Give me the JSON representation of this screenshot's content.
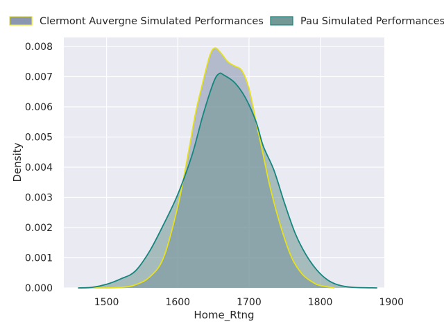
{
  "chart_data": {
    "type": "area",
    "title": "",
    "xlabel": "Home_Rtng",
    "ylabel": "Density",
    "xlim": [
      1440,
      1890
    ],
    "ylim": [
      0,
      0.0083
    ],
    "x_ticks": [
      1500,
      1600,
      1700,
      1800,
      1900
    ],
    "x_tick_labels": [
      "1500",
      "1600",
      "1700",
      "1800",
      "1900"
    ],
    "y_ticks": [
      0,
      0.001,
      0.002,
      0.003,
      0.004,
      0.005,
      0.006,
      0.007,
      0.008
    ],
    "y_tick_labels": [
      "0.000",
      "0.001",
      "0.002",
      "0.003",
      "0.004",
      "0.005",
      "0.006",
      "0.007",
      "0.008"
    ],
    "grid": true,
    "legend_placement": "top, above plot",
    "colors": {
      "background": "#eaeaf2",
      "grid": "#ffffff",
      "series_1_fill": "#8591ad",
      "series_1_line": "#e6e11a",
      "series_2_fill": "#6b9390",
      "series_2_line": "#16857e"
    },
    "series": [
      {
        "name": "Clermont Auvergne Simulated Performances",
        "points": [
          [
            1460,
            0.0
          ],
          [
            1500,
            0.0
          ],
          [
            1525,
            3e-05
          ],
          [
            1540,
            0.0001
          ],
          [
            1560,
            0.00035
          ],
          [
            1580,
            0.001
          ],
          [
            1600,
            0.0027
          ],
          [
            1615,
            0.0045
          ],
          [
            1625,
            0.0058
          ],
          [
            1635,
            0.0068
          ],
          [
            1645,
            0.0077
          ],
          [
            1652,
            0.00795
          ],
          [
            1660,
            0.0078
          ],
          [
            1670,
            0.0075
          ],
          [
            1680,
            0.00735
          ],
          [
            1690,
            0.0072
          ],
          [
            1700,
            0.0066
          ],
          [
            1710,
            0.0055
          ],
          [
            1720,
            0.0044
          ],
          [
            1730,
            0.0033
          ],
          [
            1745,
            0.002
          ],
          [
            1760,
            0.001
          ],
          [
            1775,
            0.00045
          ],
          [
            1790,
            0.00018
          ],
          [
            1800,
            8e-05
          ],
          [
            1815,
            2e-05
          ],
          [
            1820,
            0.0
          ]
        ]
      },
      {
        "name": "Pau Simulated Performances",
        "points": [
          [
            1460,
            0.0
          ],
          [
            1480,
            2e-05
          ],
          [
            1500,
            0.00012
          ],
          [
            1520,
            0.0003
          ],
          [
            1540,
            0.00055
          ],
          [
            1560,
            0.0012
          ],
          [
            1580,
            0.0021
          ],
          [
            1600,
            0.0031
          ],
          [
            1620,
            0.0044
          ],
          [
            1635,
            0.0057
          ],
          [
            1650,
            0.0068
          ],
          [
            1658,
            0.0071
          ],
          [
            1665,
            0.00705
          ],
          [
            1680,
            0.0068
          ],
          [
            1695,
            0.0063
          ],
          [
            1710,
            0.0055
          ],
          [
            1720,
            0.0047
          ],
          [
            1735,
            0.0039
          ],
          [
            1750,
            0.0028
          ],
          [
            1765,
            0.0018
          ],
          [
            1780,
            0.0011
          ],
          [
            1795,
            0.0006
          ],
          [
            1810,
            0.00027
          ],
          [
            1825,
            0.0001
          ],
          [
            1845,
            2e-05
          ],
          [
            1880,
            0.0
          ]
        ]
      }
    ]
  }
}
